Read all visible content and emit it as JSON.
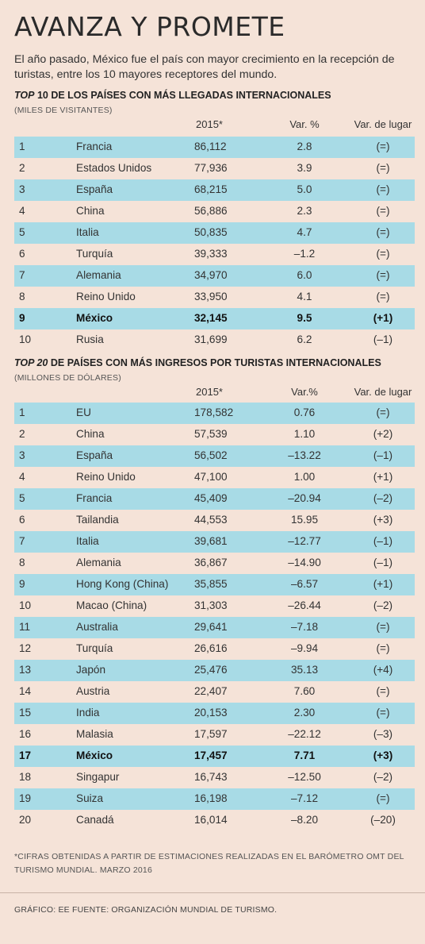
{
  "title": "AVANZA Y PROMETE",
  "intro": "El año pasado, México fue el país con mayor crecimiento en la recepción de turistas, entre los 10 mayores receptores del mundo.",
  "chart_data": [
    {
      "type": "table",
      "title_italic": "TOP",
      "title_rest": " 10 DE LOS PAÍSES CON MÁS LLEGADAS INTERNACIONALES",
      "unit": "(MILES DE VISITANTES)",
      "columns": [
        "",
        "",
        "2015*",
        "Var. %",
        "Var. de lugar"
      ],
      "rows": [
        {
          "rank": "1",
          "country": "Francia",
          "value": "86,112",
          "var": "2.8",
          "lugar": "(=)",
          "highlight": true,
          "bold": false
        },
        {
          "rank": "2",
          "country": "Estados Unidos",
          "value": "77,936",
          "var": "3.9",
          "lugar": "(=)",
          "highlight": false,
          "bold": false
        },
        {
          "rank": "3",
          "country": "España",
          "value": "68,215",
          "var": "5.0",
          "lugar": "(=)",
          "highlight": true,
          "bold": false
        },
        {
          "rank": "4",
          "country": "China",
          "value": "56,886",
          "var": "2.3",
          "lugar": "(=)",
          "highlight": false,
          "bold": false
        },
        {
          "rank": "5",
          "country": "Italia",
          "value": "50,835",
          "var": "4.7",
          "lugar": "(=)",
          "highlight": true,
          "bold": false
        },
        {
          "rank": "6",
          "country": "Turquía",
          "value": "39,333",
          "var": "–1.2",
          "lugar": "(=)",
          "highlight": false,
          "bold": false
        },
        {
          "rank": "7",
          "country": "Alemania",
          "value": "34,970",
          "var": "6.0",
          "lugar": "(=)",
          "highlight": true,
          "bold": false
        },
        {
          "rank": "8",
          "country": "Reino Unido",
          "value": "33,950",
          "var": "4.1",
          "lugar": "(=)",
          "highlight": false,
          "bold": false
        },
        {
          "rank": "9",
          "country": "México",
          "value": "32,145",
          "var": "9.5",
          "lugar": "(+1)",
          "highlight": true,
          "bold": true
        },
        {
          "rank": "10",
          "country": "Rusia",
          "value": "31,699",
          "var": "6.2",
          "lugar": "(–1)",
          "highlight": false,
          "bold": false
        }
      ]
    },
    {
      "type": "table",
      "title_italic": "TOP 20",
      "title_rest": " DE PAÍSES CON MÁS INGRESOS POR TURISTAS INTERNACIONALES",
      "unit": "(MILLONES DE DÓLARES)",
      "columns": [
        "",
        "",
        "2015*",
        "Var.%",
        "Var. de lugar"
      ],
      "rows": [
        {
          "rank": "1",
          "country": "EU",
          "value": "178,582",
          "var": "0.76",
          "lugar": "(=)",
          "highlight": true,
          "bold": false
        },
        {
          "rank": "2",
          "country": "China",
          "value": "57,539",
          "var": "1.10",
          "lugar": "(+2)",
          "highlight": false,
          "bold": false
        },
        {
          "rank": "3",
          "country": "España",
          "value": "56,502",
          "var": "–13.22",
          "lugar": "(–1)",
          "highlight": true,
          "bold": false
        },
        {
          "rank": "4",
          "country": "Reino Unido",
          "value": "47,100",
          "var": "1.00",
          "lugar": "(+1)",
          "highlight": false,
          "bold": false
        },
        {
          "rank": "5",
          "country": "Francia",
          "value": "45,409",
          "var": "–20.94",
          "lugar": "(–2)",
          "highlight": true,
          "bold": false
        },
        {
          "rank": "6",
          "country": "Tailandia",
          "value": "44,553",
          "var": "15.95",
          "lugar": "(+3)",
          "highlight": false,
          "bold": false
        },
        {
          "rank": "7",
          "country": "Italia",
          "value": "39,681",
          "var": "–12.77",
          "lugar": "(–1)",
          "highlight": true,
          "bold": false
        },
        {
          "rank": "8",
          "country": "Alemania",
          "value": "36,867",
          "var": "–14.90",
          "lugar": "(–1)",
          "highlight": false,
          "bold": false
        },
        {
          "rank": "9",
          "country": "Hong Kong (China)",
          "value": "35,855",
          "var": "–6.57",
          "lugar": "(+1)",
          "highlight": true,
          "bold": false
        },
        {
          "rank": "10",
          "country": "Macao (China)",
          "value": "31,303",
          "var": "–26.44",
          "lugar": "(–2)",
          "highlight": false,
          "bold": false
        },
        {
          "rank": "11",
          "country": "Australia",
          "value": "29,641",
          "var": "–7.18",
          "lugar": "(=)",
          "highlight": true,
          "bold": false
        },
        {
          "rank": "12",
          "country": "Turquía",
          "value": "26,616",
          "var": "–9.94",
          "lugar": "(=)",
          "highlight": false,
          "bold": false
        },
        {
          "rank": "13",
          "country": "Japón",
          "value": "25,476",
          "var": "35.13",
          "lugar": "(+4)",
          "highlight": true,
          "bold": false
        },
        {
          "rank": "14",
          "country": "Austria",
          "value": "22,407",
          "var": "7.60",
          "lugar": "(=)",
          "highlight": false,
          "bold": false
        },
        {
          "rank": "15",
          "country": "India",
          "value": "20,153",
          "var": "2.30",
          "lugar": "(=)",
          "highlight": true,
          "bold": false
        },
        {
          "rank": "16",
          "country": "Malasia",
          "value": "17,597",
          "var": "–22.12",
          "lugar": "(–3)",
          "highlight": false,
          "bold": false
        },
        {
          "rank": "17",
          "country": "México",
          "value": "17,457",
          "var": "7.71",
          "lugar": "(+3)",
          "highlight": true,
          "bold": true
        },
        {
          "rank": "18",
          "country": "Singapur",
          "value": "16,743",
          "var": "–12.50",
          "lugar": "(–2)",
          "highlight": false,
          "bold": false
        },
        {
          "rank": "19",
          "country": "Suiza",
          "value": "16,198",
          "var": "–7.12",
          "lugar": "(=)",
          "highlight": true,
          "bold": false
        },
        {
          "rank": "20",
          "country": "Canadá",
          "value": "16,014",
          "var": "–8.20",
          "lugar": "(–20)",
          "highlight": false,
          "bold": false
        }
      ]
    }
  ],
  "footnote": "*CIFRAS OBTENIDAS A PARTIR DE ESTIMACIONES REALIZADAS EN EL BARÓMETRO OMT DEL TURISMO MUNDIAL. MARZO 2016",
  "source": "GRÁFICO: EE FUENTE: ORGANIZACIÓN MUNDIAL DE TURISMO.",
  "colors": {
    "background": "#f5e3d8",
    "highlight": "#a8dbe6",
    "divider": "#c9b3a7"
  }
}
